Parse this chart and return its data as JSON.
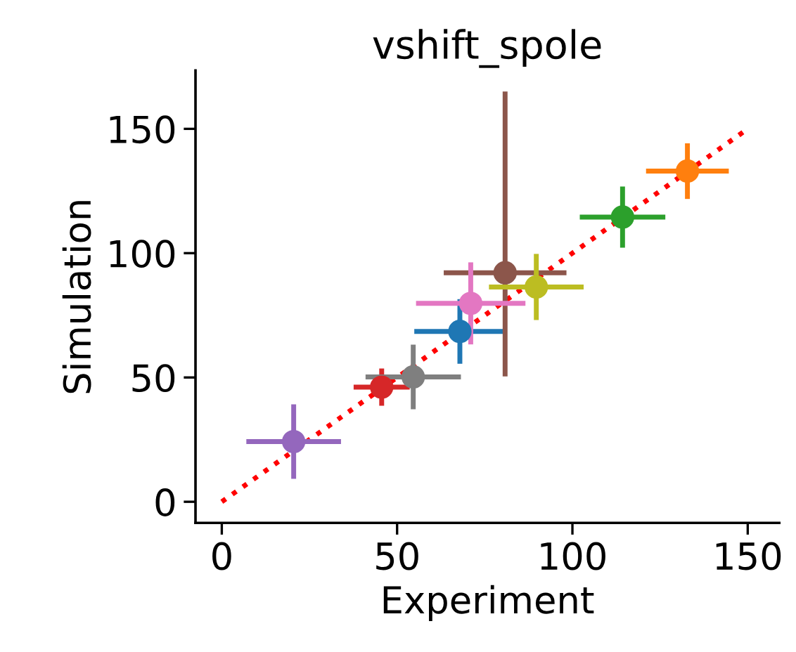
{
  "chart_data": {
    "type": "scatter",
    "title": "vshift_spole",
    "xlabel": "Experiment",
    "ylabel": "Simulation",
    "xlim": [
      -7.5,
      159
    ],
    "ylim": [
      -8.5,
      173.5
    ],
    "xticks": [
      0,
      50,
      100,
      150
    ],
    "yticks": [
      0,
      50,
      100,
      150
    ],
    "grid": false,
    "marker": "circle",
    "series": [
      {
        "type": "line",
        "color": "#ff0000",
        "line_style": "dotted",
        "marker": "none",
        "x": [
          0,
          150
        ],
        "values": [
          0,
          150
        ]
      },
      {
        "color": "#1f77b4",
        "x": [
          67.9
        ],
        "values": [
          68.5
        ],
        "xerrors": [
          13
        ],
        "errors": [
          13
        ]
      },
      {
        "color": "#ff7f0e",
        "x": [
          132.8
        ],
        "values": [
          133
        ],
        "xerrors": [
          11.8
        ],
        "errors": [
          11.2
        ]
      },
      {
        "color": "#2ca02c",
        "x": [
          114.3
        ],
        "values": [
          114.5
        ],
        "xerrors": [
          12.2
        ],
        "errors": [
          12.3
        ]
      },
      {
        "color": "#d62728",
        "x": [
          45.6
        ],
        "values": [
          46.1
        ],
        "xerrors": [
          8
        ],
        "errors": [
          7.5
        ]
      },
      {
        "color": "#9467bd",
        "x": [
          20.5
        ],
        "values": [
          24.2
        ],
        "xerrors": [
          13.5
        ],
        "errors": [
          15
        ]
      },
      {
        "color": "#8c564b",
        "x": [
          80.8
        ],
        "values": [
          92.1
        ],
        "xerrors": [
          17.5
        ],
        "errors": [
          [
            50.4,
            165
          ]
        ]
      },
      {
        "color": "#e377c2",
        "x": [
          71
        ],
        "values": [
          79.8
        ],
        "xerrors": [
          15.6
        ],
        "errors": [
          16.5
        ]
      },
      {
        "color": "#7f7f7f",
        "x": [
          54.6
        ],
        "values": [
          50.2
        ],
        "xerrors": [
          13.6
        ],
        "errors": [
          13
        ]
      },
      {
        "color": "#bcbd22",
        "x": [
          89.7
        ],
        "values": [
          86.4
        ],
        "xerrors": [
          13.5
        ],
        "errors": [
          13.3
        ]
      }
    ]
  }
}
